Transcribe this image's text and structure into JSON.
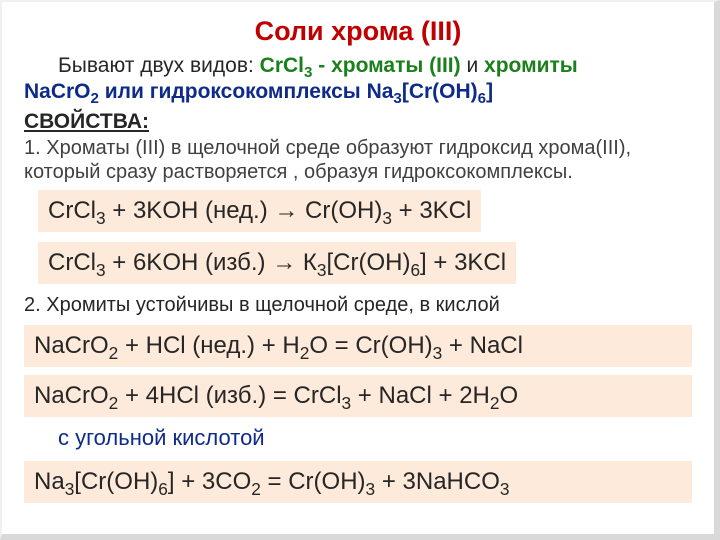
{
  "title": "Соли хрома (III)",
  "intro": {
    "prefix": "Бывают двух видов: ",
    "green1a": "CrCl",
    "green1sub": "3",
    "green1b": " - хроматы (III)",
    "mid": " и ",
    "green2": "хромиты",
    "line2a": "NaCrO",
    "line2sub": "2",
    "line2b": "   или  гидроксокомплексы Na",
    "line2sub2": "3",
    "line2c": "[Cr(OH)",
    "line2sub3": "6",
    "line2d": "]"
  },
  "props_head": "СВОЙСТВА:",
  "p1": "1. Хроматы (III) в щелочной среде образуют гидроксид хрома(III), который сразу растворяется , образуя гидроксокомплексы.",
  "eq1": {
    "a": "CrCl",
    "s1": "3",
    "b": "  + 3KOH (нед.)  →  Cr(OH)",
    "s2": "3",
    "c": " + 3KCl"
  },
  "eq2": {
    "a": "CrCl",
    "s1": "3",
    "b": "  + 6KOH (изб.)  → К",
    "s2": "3",
    "c": "[Cr(OH)",
    "s3": "6",
    "d": "] + 3KCl"
  },
  "p2": "2. Хромиты устойчивы в щелочной среде, в кислой",
  "eq3": {
    "a": "NaCrO",
    "s1": "2",
    "b": "  +  HCl (нед.) +  H",
    "s2": "2",
    "c": "O  =  Cr(OH)",
    "s3": "3",
    "d": "  +  NaCl"
  },
  "eq4": {
    "a": "NaCrO",
    "s1": "2",
    "b": " +  4HCl (изб.)   =  CrCl",
    "s2": "3",
    "c": "  +  NaCl  +  2H",
    "s3": "2",
    "d": "O"
  },
  "blue_note": "с угольной кислотой",
  "eq5": {
    "a": "Na",
    "s1": "3",
    "b": "[Cr(OH)",
    "s2": "6",
    "c": "] + 3CO",
    "s3": "2",
    "d": "  =  Cr(OH)",
    "s4": "3",
    "e": "  +  3NaHCO",
    "s5": "3"
  },
  "colors": {
    "title": "#c00000",
    "green": "#1b7f1b",
    "blue": "#0e2a8a",
    "eq_bg": "#fdeada",
    "body": "#262626",
    "shadow": "#d9d9d9"
  },
  "fonts": {
    "title_pt": 27,
    "intro_pt": 21,
    "body_pt": 20,
    "eq_pt": 24
  }
}
